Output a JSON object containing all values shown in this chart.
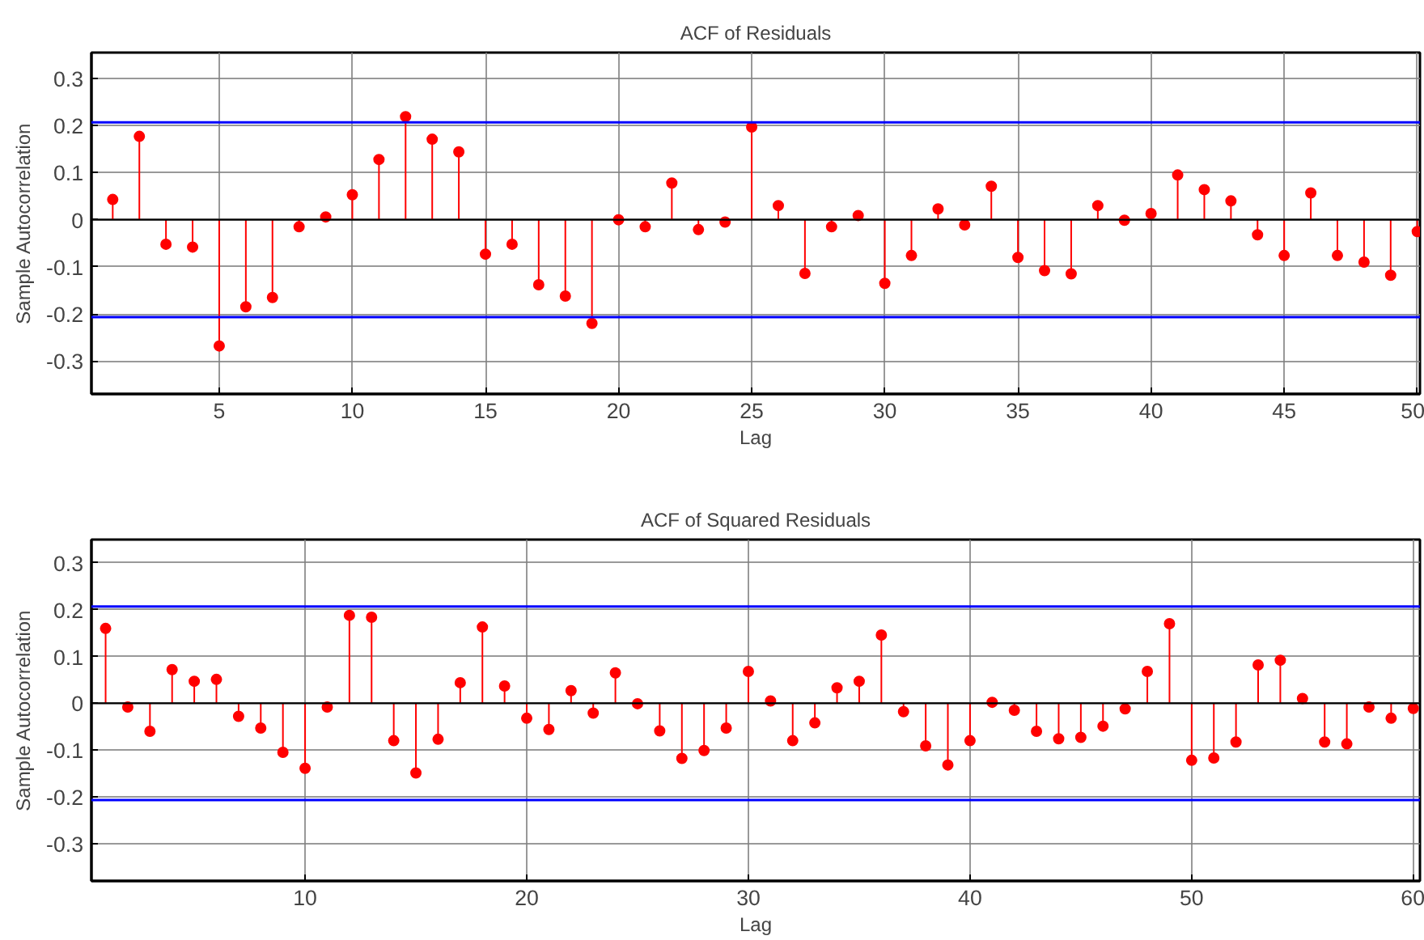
{
  "chart_data": [
    {
      "type": "lollipop",
      "title": "ACF of Residuals",
      "xlabel": "Lag",
      "ylabel": "Sample Autocorrelation",
      "marker": "circle",
      "grid": true,
      "x": [
        1,
        2,
        3,
        4,
        5,
        6,
        7,
        8,
        9,
        10,
        11,
        12,
        13,
        14,
        15,
        16,
        17,
        18,
        19,
        20,
        21,
        22,
        23,
        24,
        25,
        26,
        27,
        28,
        29,
        30,
        31,
        32,
        33,
        34,
        35,
        36,
        37,
        38,
        39,
        40,
        41,
        42,
        43,
        44,
        45,
        46,
        47,
        48,
        49,
        50
      ],
      "series": [
        {
          "color": "#ff0000",
          "values": [
            0.043,
            0.177,
            -0.052,
            -0.058,
            -0.268,
            -0.185,
            -0.165,
            -0.015,
            0.006,
            0.053,
            0.128,
            0.219,
            0.171,
            0.144,
            -0.073,
            -0.052,
            -0.138,
            -0.162,
            -0.22,
            0.0,
            -0.015,
            0.078,
            -0.021,
            -0.005,
            0.197,
            0.03,
            -0.114,
            -0.015,
            0.009,
            -0.135,
            -0.076,
            0.023,
            -0.011,
            0.071,
            -0.08,
            -0.108,
            -0.115,
            0.03,
            -0.001,
            0.013,
            0.095,
            0.064,
            0.04,
            -0.032,
            -0.076,
            0.057,
            -0.076,
            -0.09,
            -0.118,
            -0.025
          ]
        }
      ],
      "xlim": [
        0.2,
        50.1
      ],
      "xticks": [
        5,
        10,
        15,
        20,
        25,
        30,
        35,
        40,
        45,
        50
      ],
      "ylim": [
        -0.37,
        0.355
      ],
      "yticks": [
        -0.3,
        -0.2,
        -0.1,
        0,
        0.1,
        0.2,
        0.3
      ],
      "ref_lines": [
        {
          "axis": "y",
          "value": 0.207,
          "color": "#0000ff"
        },
        {
          "axis": "y",
          "value": -0.207,
          "color": "#0000ff"
        }
      ]
    },
    {
      "type": "lollipop",
      "title": "ACF of Squared Residuals",
      "xlabel": "Lag",
      "ylabel": "Sample Autocorrelation",
      "marker": "circle",
      "grid": true,
      "x": [
        1,
        2,
        3,
        4,
        5,
        6,
        7,
        8,
        9,
        10,
        11,
        12,
        13,
        14,
        15,
        16,
        17,
        18,
        19,
        20,
        21,
        22,
        23,
        24,
        25,
        26,
        27,
        28,
        29,
        30,
        31,
        32,
        33,
        34,
        35,
        36,
        37,
        38,
        39,
        40,
        41,
        42,
        43,
        44,
        45,
        46,
        47,
        48,
        49,
        50,
        51,
        52,
        53,
        54,
        55,
        56,
        57,
        58,
        59,
        60
      ],
      "series": [
        {
          "color": "#ff0000",
          "values": [
            0.16,
            -0.008,
            -0.06,
            0.072,
            0.047,
            0.051,
            -0.028,
            -0.053,
            -0.105,
            -0.139,
            -0.008,
            0.188,
            0.184,
            -0.08,
            -0.149,
            -0.077,
            0.044,
            0.163,
            0.037,
            -0.032,
            -0.056,
            0.027,
            -0.021,
            0.065,
            -0.001,
            -0.059,
            -0.118,
            -0.101,
            -0.053,
            0.068,
            0.005,
            -0.08,
            -0.042,
            0.033,
            0.047,
            0.146,
            -0.018,
            -0.091,
            -0.132,
            -0.08,
            0.002,
            -0.015,
            -0.06,
            -0.076,
            -0.073,
            -0.049,
            -0.012,
            0.068,
            0.17,
            -0.122,
            -0.117,
            -0.083,
            0.082,
            0.092,
            0.01,
            -0.083,
            -0.087,
            -0.008,
            -0.032,
            -0.011
          ]
        }
      ],
      "xlim": [
        0.36,
        60.3
      ],
      "xticks": [
        10,
        20,
        30,
        40,
        50,
        60
      ],
      "ylim": [
        -0.38,
        0.35
      ],
      "yticks": [
        -0.3,
        -0.2,
        -0.1,
        0,
        0.1,
        0.2,
        0.3
      ],
      "ref_lines": [
        {
          "axis": "y",
          "value": 0.207,
          "color": "#0000ff"
        },
        {
          "axis": "y",
          "value": -0.207,
          "color": "#0000ff"
        }
      ]
    }
  ]
}
